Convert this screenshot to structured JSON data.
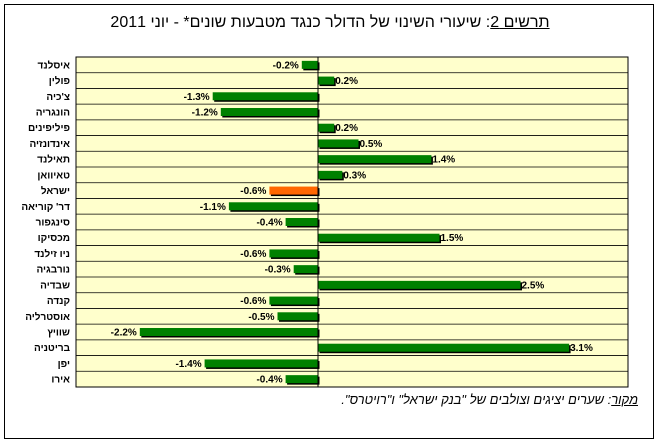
{
  "title": {
    "lead": "תרשים 2",
    "rest": ": שיעורי השינוי של הדולר כנגד מטבעות שונים* - יוני 2011"
  },
  "source": {
    "lead": "מקור",
    "rest": ": שערים יציגים וצולבים של \"בנק ישראל\" ו\"רויטרס\"."
  },
  "colors": {
    "plot_bg": "#ffffcc",
    "bar": "#008000",
    "highlight_bar": "#ff6600",
    "bar_shadow": "#000000"
  },
  "chart_data": {
    "type": "bar",
    "orientation": "horizontal",
    "categories": [
      "איסלנד",
      "פולין",
      "צ'כיה",
      "הונגריה",
      "פיליפינים",
      "אינדונזיה",
      "תאילנד",
      "טאיוואן",
      "ישראל",
      "דר' קוריאה",
      "סינגפור",
      "מכסיקו",
      "ניו זילנד",
      "נורבגיה",
      "שבדיה",
      "קנדה",
      "אוסטרליה",
      "שוויץ",
      "בריטניה",
      "יפן",
      "אירו"
    ],
    "values": [
      -0.2,
      0.2,
      -1.3,
      -1.2,
      0.2,
      0.5,
      1.4,
      0.3,
      -0.6,
      -1.1,
      -0.4,
      1.5,
      -0.6,
      -0.3,
      2.5,
      -0.6,
      -0.5,
      -2.2,
      3.1,
      -1.4,
      -0.4
    ],
    "value_labels": [
      "-0.2%",
      "0.2%",
      "-1.3%",
      "-1.2%",
      "0.2%",
      "0.5%",
      "1.4%",
      "0.3%",
      "-0.6%",
      "-1.1%",
      "-0.4%",
      "1.5%",
      "-0.6%",
      "-0.3%",
      "2.5%",
      "-0.6%",
      "-0.5%",
      "-2.2%",
      "3.1%",
      "-1.4%",
      "-0.4%"
    ],
    "highlight_category": "ישראל",
    "xlim": [
      -3.0,
      3.2
    ],
    "grid": "horizontal lines between categories"
  }
}
